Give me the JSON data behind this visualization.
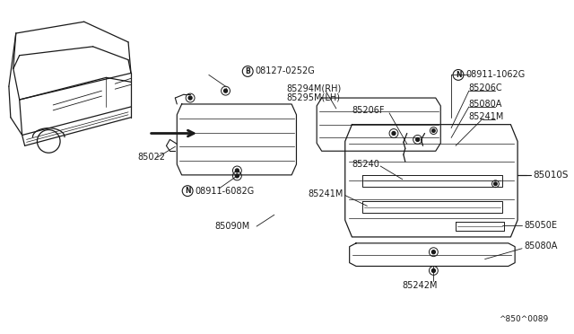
{
  "background_color": "#ffffff",
  "diagram_code": "^850^0089",
  "line_color": "#1a1a1a",
  "text_color": "#1a1a1a",
  "fig_width": 6.4,
  "fig_height": 3.72,
  "dpi": 100,
  "labels": {
    "B_bolt_label": "08127-0252G",
    "p85294": "85294M(RH)",
    "p85295": "85295M(LH)",
    "N_nut_label": "08911-1062G",
    "p85206C": "85206C",
    "p85206F": "85206F",
    "p85080A_top": "85080A",
    "p85241M_top": "85241M",
    "p85022": "85022",
    "p85010S": "85010S",
    "p85240": "85240",
    "p85241M_mid": "85241M",
    "N_nut2_label": "08911-6082G",
    "p85090M": "85090M",
    "p85050E": "85050E",
    "p85080A_bot": "85080A",
    "p85242M": "85242M",
    "diagram_ref": "^850^0089"
  }
}
